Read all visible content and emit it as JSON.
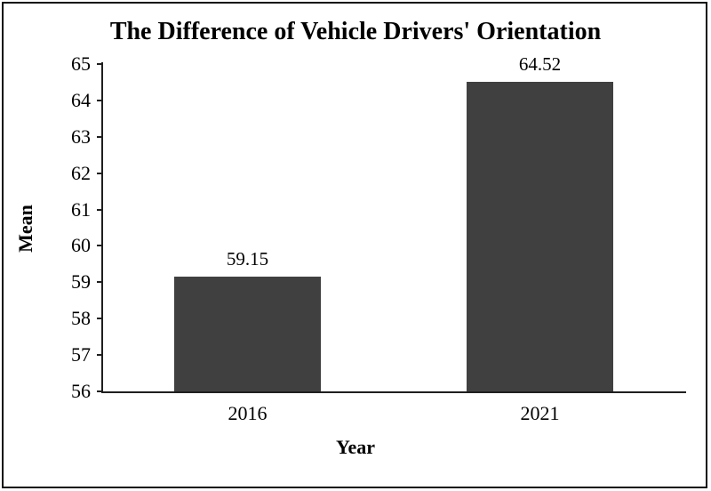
{
  "window": {
    "background": "#ffffff",
    "frame_border_color": "#0d0d0d"
  },
  "chart_data": {
    "type": "bar",
    "title": "The Difference of Vehicle Drivers' Orientation",
    "categories": [
      "2016",
      "2021"
    ],
    "values": [
      59.15,
      64.52
    ],
    "value_labels": [
      "59.15",
      "64.52"
    ],
    "xlabel": "Year",
    "ylabel": "Mean",
    "ylim": [
      56,
      65
    ],
    "yticks": [
      56,
      57,
      58,
      59,
      60,
      61,
      62,
      63,
      64,
      65
    ],
    "ytick_step": 1,
    "grid": false,
    "legend": false,
    "data_labels": true,
    "bar_color": "#404040",
    "axis_color": "#1f1f1f",
    "text_color": "#000000"
  }
}
